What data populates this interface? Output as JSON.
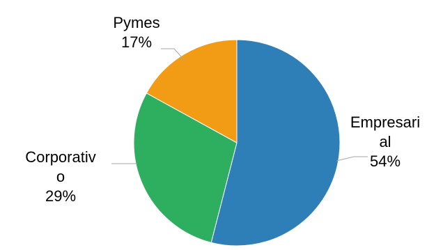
{
  "chart_data": {
    "type": "pie",
    "slices": [
      {
        "category": "Empresarial",
        "label_lines": [
          "Empresari",
          "al"
        ],
        "value": 54,
        "value_label": "54%",
        "color": "#2e7fb8"
      },
      {
        "category": "Corporativo",
        "label_lines": [
          "Corporativ",
          "o"
        ],
        "value": 29,
        "value_label": "29%",
        "color": "#2eaf5f"
      },
      {
        "category": "Pymes",
        "label_lines": [
          "Pymes"
        ],
        "value": 17,
        "value_label": "17%",
        "color": "#f29c16"
      }
    ],
    "start_angle": "12 o'clock",
    "direction": "clockwise",
    "legend": "none",
    "data_labels": "outside with leader lines"
  }
}
